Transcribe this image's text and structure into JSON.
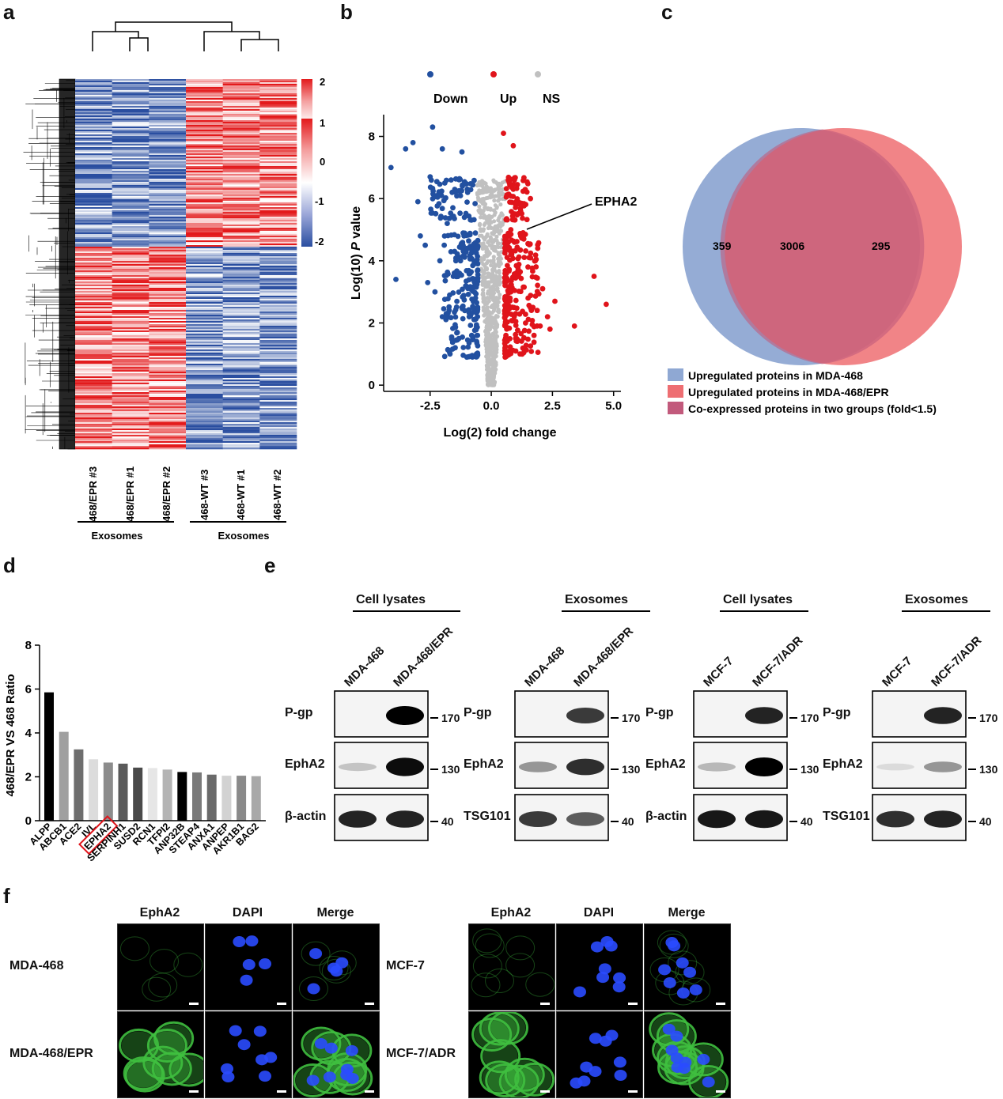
{
  "panels": {
    "a": "a",
    "b": "b",
    "c": "c",
    "d": "d",
    "e": "e",
    "f": "f"
  },
  "heatmap": {
    "colorbar_ticks": [
      "2",
      "1",
      "0",
      "-1",
      "-2"
    ],
    "samples": [
      "468/EPR #3",
      "468/EPR #1",
      "468/EPR #2",
      "468-WT #3",
      "468-WT #1",
      "468-WT #2"
    ],
    "group_labels": [
      "Exosomes",
      "Exosomes"
    ],
    "colors": {
      "high": "#e31a1c",
      "low": "#2a4ea0",
      "mid": "#ffffff"
    }
  },
  "volcano": {
    "legend": [
      {
        "label": "Down",
        "color": "#2250a0"
      },
      {
        "label": "Up",
        "color": "#e0141b"
      },
      {
        "label": "NS",
        "color": "#c0c0c0"
      }
    ],
    "annotation": "EPHA2",
    "chart_data": {
      "type": "scatter",
      "xlabel": "Log(2) fold change",
      "ylabel_prefix": "Log(10) ",
      "ylabel_italic": "P",
      "ylabel_suffix": " value",
      "xlim": [
        -4.4,
        5.3
      ],
      "ylim": [
        -0.2,
        8.7
      ],
      "xticks": [
        "-2.5",
        "0.0",
        "2.5",
        "5.0"
      ],
      "yticks": [
        "0",
        "2",
        "4",
        "6",
        "8"
      ],
      "series": [
        {
          "name": "Down",
          "points": [
            [
              -4.1,
              7.0
            ],
            [
              -3.9,
              3.4
            ],
            [
              -3.5,
              7.6
            ],
            [
              -3.2,
              7.8
            ],
            [
              -2.4,
              8.3
            ],
            [
              -2.0,
              7.6
            ],
            [
              -1.2,
              7.5
            ],
            [
              -3.0,
              5.9
            ],
            [
              -2.6,
              3.3
            ],
            [
              -2.9,
              4.8
            ],
            [
              -2.2,
              6.1
            ],
            [
              -1.8,
              5.2
            ],
            [
              -1.5,
              4.3
            ],
            [
              -2.3,
              3.0
            ],
            [
              -2.0,
              2.2
            ],
            [
              -1.7,
              2.9
            ],
            [
              -1.3,
              3.6
            ],
            [
              -1.1,
              5.4
            ],
            [
              -0.9,
              2.2
            ],
            [
              -0.8,
              1.6
            ],
            [
              -1.9,
              6.5
            ],
            [
              -1.6,
              6.2
            ],
            [
              -2.5,
              6.7
            ],
            [
              -1.0,
              4.4
            ],
            [
              -1.4,
              1.7
            ],
            [
              -2.7,
              4.5
            ],
            [
              -0.7,
              3.9
            ],
            [
              -1.2,
              2.5
            ],
            [
              -2.1,
              4.0
            ]
          ]
        },
        {
          "name": "Up",
          "points": [
            [
              0.5,
              8.1
            ],
            [
              0.9,
              7.7
            ],
            [
              1.6,
              6.0
            ],
            [
              4.2,
              3.5
            ],
            [
              4.7,
              2.6
            ],
            [
              3.4,
              1.9
            ],
            [
              2.6,
              2.7
            ],
            [
              1.9,
              4.4
            ],
            [
              2.3,
              2.2
            ],
            [
              1.2,
              5.6
            ],
            [
              0.8,
              3.0
            ],
            [
              1.5,
              3.8
            ],
            [
              2.0,
              1.9
            ],
            [
              1.0,
              2.3
            ],
            [
              0.7,
              4.6
            ],
            [
              1.3,
              4.9
            ],
            [
              2.1,
              3.1
            ],
            [
              0.9,
              6.3
            ],
            [
              1.7,
              2.5
            ],
            [
              0.6,
              1.6
            ],
            [
              1.1,
              3.5
            ],
            [
              1.8,
              4.0
            ],
            [
              0.8,
              5.0
            ],
            [
              2.4,
              1.8
            ],
            [
              1.4,
              2.0
            ]
          ]
        }
      ]
    }
  },
  "venn": {
    "left_count": "359",
    "overlap_count": "3006",
    "right_count": "295",
    "legend": [
      {
        "label": "Upregulated proteins in MDA-468",
        "color": "#8fa8d3"
      },
      {
        "label": "Upregulated proteins in MDA-468/EPR",
        "color": "#ee6e72"
      },
      {
        "label": "Co-expressed proteins in two groups (fold<1.5)",
        "color": "#c25a7c"
      }
    ]
  },
  "bar_ratio": {
    "chart_data": {
      "type": "bar",
      "ylabel": "468/EPR VS 468 Ratio",
      "ylim": [
        0,
        8
      ],
      "yticks": [
        "0",
        "2",
        "4",
        "6",
        "8"
      ],
      "categories": [
        "ALPP",
        "ABCB1",
        "ACE2",
        "IVL",
        "EPHA2",
        "SERPINH1",
        "SUSD2",
        "RCN1",
        "TFPI2",
        "ANP32B",
        "STEAP4",
        "ANXA1",
        "ANPEP",
        "AKR1B1",
        "BAG2"
      ],
      "values": [
        5.85,
        4.05,
        3.25,
        2.8,
        2.65,
        2.6,
        2.42,
        2.4,
        2.33,
        2.22,
        2.2,
        2.1,
        2.05,
        2.05,
        2.03
      ],
      "colors": [
        "#000000",
        "#a0a0a0",
        "#6e6e6e",
        "#dcdcdc",
        "#8c8c8c",
        "#5a5a5a",
        "#4a4a4a",
        "#e6e6e6",
        "#b4b4b4",
        "#000000",
        "#7a7a7a",
        "#6a6a6a",
        "#d2d2d2",
        "#8a8a8a",
        "#a8a8a8"
      ],
      "highlight": "EPHA2"
    }
  },
  "western": {
    "groups": [
      {
        "header": "Cell lysates",
        "lanes": [
          "MDA-468",
          "MDA-468/EPR"
        ],
        "rows": [
          "P-gp",
          "EphA2",
          "β-actin"
        ],
        "markers": [
          "170",
          "130",
          "40"
        ]
      },
      {
        "header": "Exosomes",
        "lanes": [
          "MDA-468",
          "MDA-468/EPR"
        ],
        "rows": [
          "P-gp",
          "EphA2",
          "TSG101"
        ],
        "markers": [
          "170",
          "130",
          "40"
        ]
      },
      {
        "header": "Cell lysates",
        "lanes": [
          "MCF-7",
          "MCF-7/ADR"
        ],
        "rows": [
          "P-gp",
          "EphA2",
          "β-actin"
        ],
        "markers": [
          "170",
          "130",
          "40"
        ]
      },
      {
        "header": "Exosomes",
        "lanes": [
          "MCF-7",
          "MCF-7/ADR"
        ],
        "rows": [
          "P-gp",
          "EphA2",
          "TSG101"
        ],
        "markers": [
          "170",
          "130",
          "40"
        ]
      }
    ]
  },
  "microscopy": {
    "columns": [
      "EphA2",
      "DAPI",
      "Merge"
    ],
    "left_rows": [
      "MDA-468",
      "MDA-468/EPR"
    ],
    "right_rows": [
      "MCF-7",
      "MCF-7/ADR"
    ],
    "colors": {
      "green": "#3fbf3f",
      "blue": "#2a4bff"
    }
  }
}
